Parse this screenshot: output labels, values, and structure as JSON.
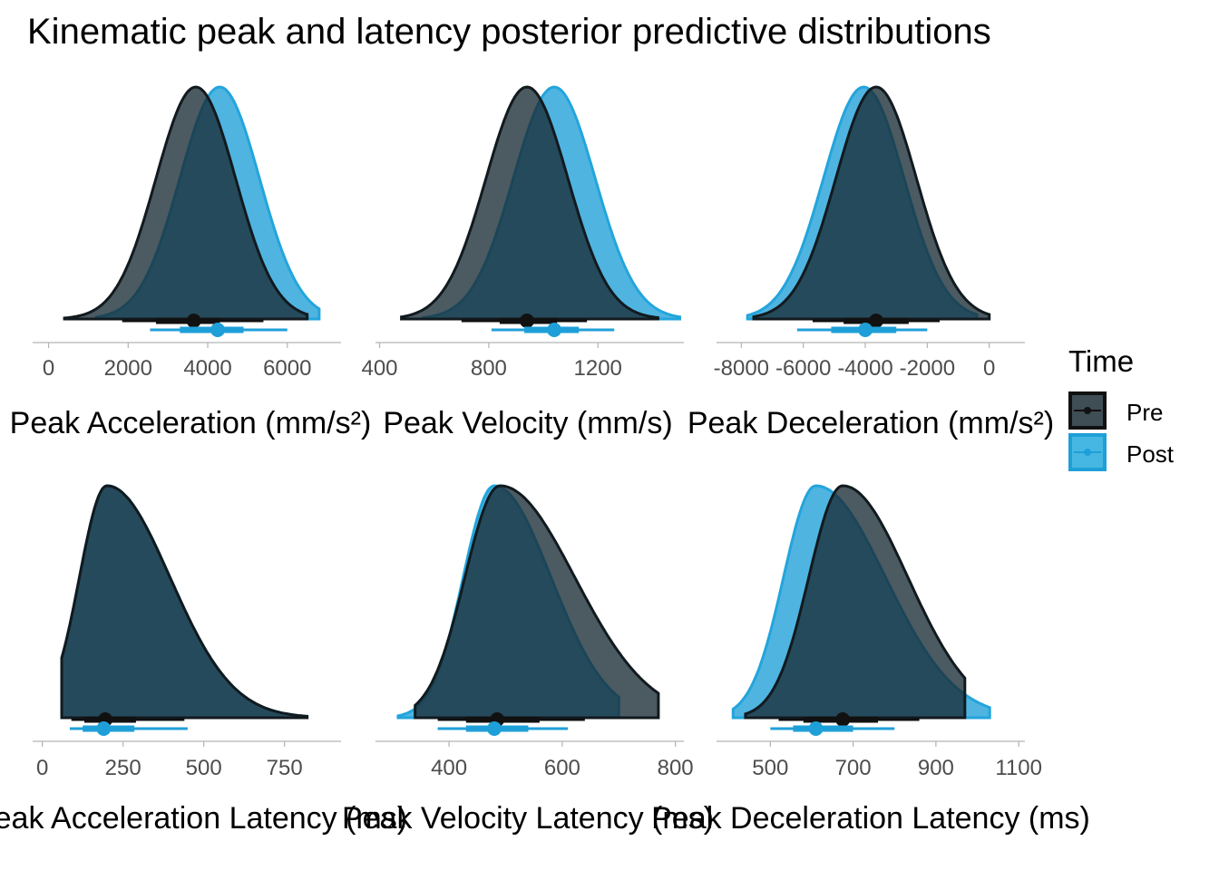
{
  "title": "Kinematic peak and latency posterior predictive distributions",
  "legend": {
    "title": "Time",
    "position": "right",
    "items": [
      {
        "label": "Pre",
        "color": "#1a1a1a"
      },
      {
        "label": "Post",
        "color": "#1f9fd8"
      }
    ]
  },
  "colors": {
    "pre_fill": "#1a2b35",
    "pre_line": "#111a1f",
    "post_fill": "#1f9fd8",
    "post_line": "#23a5dc",
    "axis": "#b3b3b3",
    "tick_text": "#4d4d4d"
  },
  "chart_data": [
    {
      "type": "area",
      "subtype": "density-halfeye",
      "xlabel": "Peak Acceleration (mm/s²)",
      "xlim": [
        -400,
        7350
      ],
      "xticks": [
        0,
        2000,
        4000,
        6000
      ],
      "tick_labels": [
        "0",
        "2000",
        "4000",
        "6000"
      ],
      "series": [
        {
          "name": "Pre",
          "mean": 3700,
          "sd": 1000,
          "skew": 0,
          "range": [
            400,
            6500
          ],
          "interval_66": [
            2700,
            4300
          ],
          "interval_95": [
            1850,
            5400
          ],
          "point": 3650
        },
        {
          "name": "Post",
          "mean": 4300,
          "sd": 1000,
          "skew": 0,
          "range": [
            1200,
            6800
          ],
          "interval_66": [
            3300,
            4900
          ],
          "interval_95": [
            2550,
            6000
          ],
          "point": 4250
        }
      ]
    },
    {
      "type": "area",
      "subtype": "density-halfeye",
      "xlabel": "Peak Velocity (mm/s)",
      "xlim": [
        385,
        1515
      ],
      "xticks": [
        400,
        800,
        1200
      ],
      "tick_labels": [
        "400",
        "800",
        "1200"
      ],
      "series": [
        {
          "name": "Pre",
          "mean": 940,
          "sd": 150,
          "skew": 0,
          "range": [
            480,
            1420
          ],
          "interval_66": [
            840,
            1050
          ],
          "interval_95": [
            700,
            1160
          ],
          "point": 940
        },
        {
          "name": "Post",
          "mean": 1040,
          "sd": 150,
          "skew": 0,
          "range": [
            560,
            1500
          ],
          "interval_66": [
            930,
            1130
          ],
          "interval_95": [
            810,
            1260
          ],
          "point": 1040
        }
      ]
    },
    {
      "type": "area",
      "subtype": "density-halfeye",
      "xlabel": "Peak Deceleration (mm/s²)",
      "xlim": [
        -8800,
        1150
      ],
      "xticks": [
        -8000,
        -6000,
        -4000,
        -2000,
        0
      ],
      "tick_labels": [
        "-8000",
        "-6000",
        "-4000",
        "-2000",
        "0"
      ],
      "series": [
        {
          "name": "Pre",
          "mean": -3650,
          "sd": 1300,
          "skew": 0,
          "range": [
            -7600,
            0
          ],
          "interval_66": [
            -4700,
            -2600
          ],
          "interval_95": [
            -5700,
            -1600
          ],
          "point": -3650
        },
        {
          "name": "Post",
          "mean": -4050,
          "sd": 1300,
          "skew": 0,
          "range": [
            -7800,
            -400
          ],
          "interval_66": [
            -5100,
            -3000
          ],
          "interval_95": [
            -6200,
            -2000
          ],
          "point": -4000
        }
      ]
    },
    {
      "type": "area",
      "subtype": "density-halfeye",
      "xlabel": "Peak Acceleration Latency (ms)",
      "xlim": [
        -30,
        925
      ],
      "xticks": [
        0,
        250,
        500,
        750
      ],
      "tick_labels": [
        "0",
        "250",
        "500",
        "750"
      ],
      "series": [
        {
          "name": "Pre",
          "mean": 200,
          "sd": 85,
          "skew": 110,
          "range": [
            60,
            820
          ],
          "interval_66": [
            130,
            290
          ],
          "interval_95": [
            90,
            440
          ],
          "point": 195
        },
        {
          "name": "Post",
          "mean": 200,
          "sd": 85,
          "skew": 110,
          "range": [
            60,
            820
          ],
          "interval_66": [
            125,
            285
          ],
          "interval_95": [
            85,
            450
          ],
          "point": 190
        }
      ]
    },
    {
      "type": "area",
      "subtype": "density-halfeye",
      "xlabel": "Peak Velocity Latency (ms)",
      "xlim": [
        270,
        815
      ],
      "xticks": [
        400,
        600,
        800
      ],
      "tick_labels": [
        "400",
        "600",
        "800"
      ],
      "series": [
        {
          "name": "Pre",
          "mean": 490,
          "sd": 62,
          "skew": 70,
          "range": [
            340,
            770
          ],
          "interval_66": [
            430,
            560
          ],
          "interval_95": [
            380,
            640
          ],
          "point": 485
        },
        {
          "name": "Post",
          "mean": 480,
          "sd": 55,
          "skew": 45,
          "range": [
            310,
            700
          ],
          "interval_66": [
            430,
            540
          ],
          "interval_95": [
            380,
            610
          ],
          "point": 480
        }
      ]
    },
    {
      "type": "area",
      "subtype": "density-halfeye",
      "xlabel": "Peak Deceleration Latency (ms)",
      "xlim": [
        370,
        1115
      ],
      "xticks": [
        500,
        700,
        900,
        1100
      ],
      "tick_labels": [
        "500",
        "700",
        "900",
        "1100"
      ],
      "series": [
        {
          "name": "Pre",
          "mean": 675,
          "sd": 82,
          "skew": 75,
          "range": [
            440,
            970
          ],
          "interval_66": [
            580,
            760
          ],
          "interval_95": [
            520,
            860
          ],
          "point": 675
        },
        {
          "name": "Post",
          "mean": 610,
          "sd": 78,
          "skew": 90,
          "range": [
            410,
            1030
          ],
          "interval_66": [
            555,
            700
          ],
          "interval_95": [
            500,
            800
          ],
          "point": 610
        }
      ]
    }
  ]
}
